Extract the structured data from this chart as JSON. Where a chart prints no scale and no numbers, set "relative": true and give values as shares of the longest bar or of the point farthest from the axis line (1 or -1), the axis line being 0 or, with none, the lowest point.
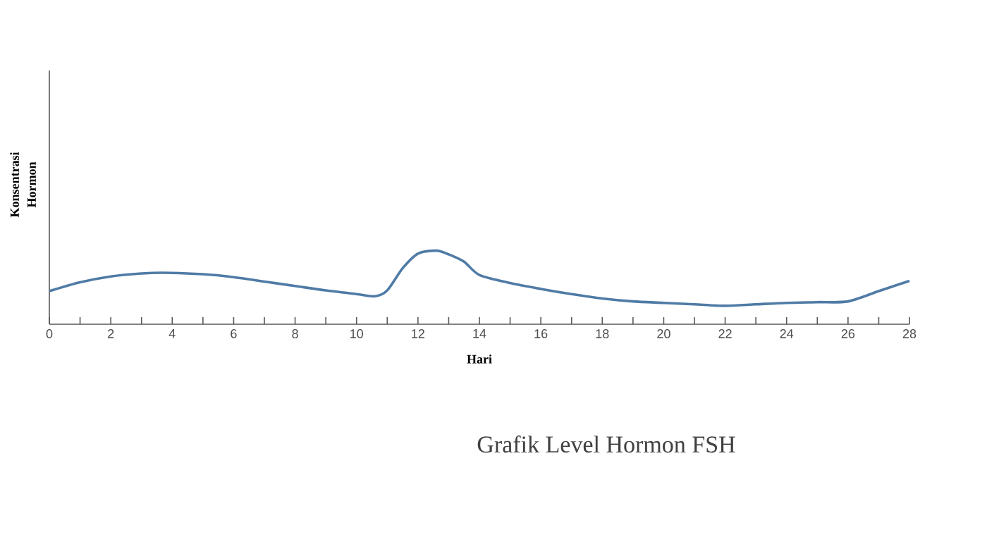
{
  "chart_data": {
    "type": "line",
    "title": "Grafik Level Hormon FSH",
    "xlabel": "Hari",
    "ylabel": "Konsentrasi Hormon",
    "relative": true,
    "xlim": [
      0,
      28
    ],
    "xticks": [
      0,
      2,
      4,
      6,
      8,
      10,
      12,
      14,
      16,
      18,
      20,
      22,
      24,
      26,
      28
    ],
    "grid": false,
    "marker": "none",
    "line_style": "solid",
    "series": [
      {
        "color": "#4f7ba6",
        "x": [
          0,
          1,
          2,
          3,
          3.7,
          5,
          6,
          7,
          8,
          9,
          10,
          10.6,
          11,
          11.5,
          12,
          12.6,
          13,
          13.5,
          14,
          15,
          16,
          17,
          18,
          19,
          20,
          21,
          22,
          23,
          24,
          25,
          26,
          27,
          28
        ],
        "values": [
          0.45,
          0.57,
          0.65,
          0.69,
          0.7,
          0.68,
          0.64,
          0.58,
          0.52,
          0.46,
          0.41,
          0.38,
          0.46,
          0.76,
          0.96,
          1.0,
          0.95,
          0.85,
          0.67,
          0.56,
          0.48,
          0.41,
          0.35,
          0.31,
          0.29,
          0.27,
          0.25,
          0.27,
          0.29,
          0.3,
          0.31,
          0.45,
          0.59
        ]
      }
    ]
  }
}
